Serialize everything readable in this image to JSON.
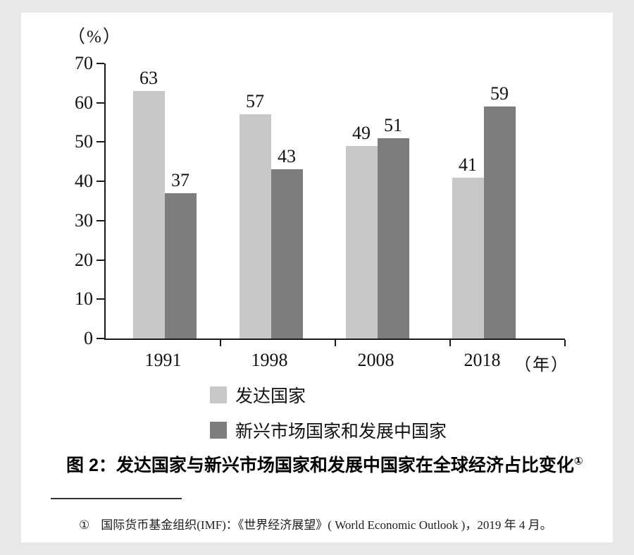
{
  "page": {
    "background": "#e8e8e8",
    "panel_background": "#ffffff"
  },
  "chart_data": {
    "type": "bar",
    "title": "发达国家与新兴市场国家和发展中国家在全球经济占比变化",
    "unit_label": "（%）",
    "x_unit_label": "（年）",
    "categories": [
      "1991",
      "1998",
      "2008",
      "2018"
    ],
    "series": [
      {
        "name": "发达国家",
        "color": "#c7c7c7",
        "values": [
          63,
          57,
          49,
          41
        ]
      },
      {
        "name": "新兴市场国家和发展中国家",
        "color": "#7d7d7d",
        "values": [
          37,
          43,
          51,
          59
        ]
      }
    ],
    "ylim": [
      0,
      70
    ],
    "yticks": [
      0,
      10,
      20,
      30,
      40,
      50,
      60,
      70
    ],
    "grid": false,
    "value_labels": true,
    "legend_position": "bottom",
    "axis_color": "#1a1a1a"
  },
  "caption": {
    "text": "图 2：发达国家与新兴市场国家和发展中国家在全球经济占比变化",
    "superscript": "①"
  },
  "footnote": {
    "marker": "①",
    "text": "国际货币基金组织(IMF)：《世界经济展望》( World Economic Outlook )，2019 年 4 月。"
  }
}
